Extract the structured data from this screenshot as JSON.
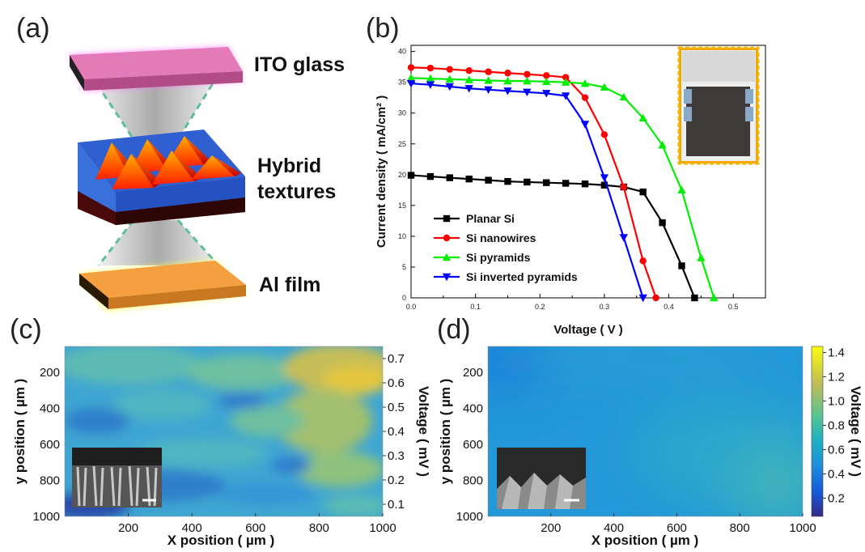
{
  "panels": {
    "a": {
      "label": "(a)",
      "layers": [
        "ITO glass",
        "Hybrid textures",
        "Al film"
      ],
      "layer_label_hybrid_line1": "Hybrid",
      "layer_label_hybrid_line2": "textures",
      "colors": {
        "ito": "#e070b0",
        "ito_glow": "#ff80ff",
        "water": "#3a6fd8",
        "pyramid_hot": "#ff3300",
        "pyramid_warm": "#ffb000",
        "substrate": "#4a0a0a",
        "al": "#f5a040",
        "al_glow": "#ffff60",
        "cone": "#9a9a9a",
        "cone_edge": "#5cbf9a"
      }
    },
    "b": {
      "label": "(b)"
    },
    "c": {
      "label": "(c)"
    },
    "d": {
      "label": "(d)"
    }
  },
  "chart_data": [
    {
      "type": "line",
      "panel": "b",
      "xlabel": "Voltage ( V )",
      "ylabel": "Current density ( mA/cm² )",
      "xlim": [
        0.0,
        0.55
      ],
      "ylim": [
        0,
        41
      ],
      "xticks": [
        "0.0",
        "0.1",
        "0.2",
        "0.3",
        "0.4",
        "0.5"
      ],
      "xtick_values": [
        0.0,
        0.1,
        0.2,
        0.3,
        0.4,
        0.5
      ],
      "yticks": [
        "0",
        "5",
        "10",
        "15",
        "20",
        "25",
        "30",
        "35",
        "40"
      ],
      "ytick_values": [
        0,
        5,
        10,
        15,
        20,
        25,
        30,
        35,
        40
      ],
      "minor_xticks": [
        0.05,
        0.15,
        0.25,
        0.35,
        0.45
      ],
      "legend_position": "bottom-left",
      "inset": "photo of device",
      "series": [
        {
          "name": "Planar Si",
          "color": "#000000",
          "marker": "square",
          "x": [
            0.0,
            0.03,
            0.06,
            0.09,
            0.12,
            0.15,
            0.18,
            0.21,
            0.24,
            0.27,
            0.3,
            0.33,
            0.36,
            0.39,
            0.42,
            0.44
          ],
          "y": [
            19.9,
            19.7,
            19.5,
            19.3,
            19.1,
            18.9,
            18.8,
            18.7,
            18.6,
            18.5,
            18.3,
            18.0,
            17.2,
            12.2,
            5.2,
            0
          ]
        },
        {
          "name": "Si nanowires",
          "color": "#ff0000",
          "marker": "circle",
          "x": [
            0.0,
            0.03,
            0.06,
            0.09,
            0.12,
            0.15,
            0.18,
            0.21,
            0.24,
            0.27,
            0.3,
            0.33,
            0.36,
            0.38
          ],
          "y": [
            37.4,
            37.3,
            37.1,
            36.9,
            36.7,
            36.5,
            36.3,
            36.1,
            35.8,
            32.5,
            26.5,
            18.0,
            6.0,
            0
          ]
        },
        {
          "name": "Si pyramids",
          "color": "#00ee00",
          "marker": "triangle-up",
          "x": [
            0.0,
            0.03,
            0.06,
            0.09,
            0.12,
            0.15,
            0.18,
            0.21,
            0.24,
            0.27,
            0.3,
            0.33,
            0.36,
            0.39,
            0.42,
            0.45,
            0.47
          ],
          "y": [
            35.7,
            35.6,
            35.5,
            35.4,
            35.3,
            35.2,
            35.2,
            35.1,
            35.0,
            34.8,
            34.2,
            32.6,
            29.2,
            24.8,
            17.5,
            6.5,
            0
          ]
        },
        {
          "name": "Si inverted pyramids",
          "color": "#0000ff",
          "marker": "triangle-down",
          "x": [
            0.0,
            0.03,
            0.06,
            0.09,
            0.12,
            0.15,
            0.18,
            0.21,
            0.24,
            0.27,
            0.3,
            0.33,
            0.36
          ],
          "y": [
            34.8,
            34.6,
            34.3,
            34.0,
            33.8,
            33.6,
            33.4,
            33.2,
            32.8,
            28.2,
            19.5,
            9.8,
            0
          ]
        }
      ]
    },
    {
      "type": "heatmap",
      "panel": "c",
      "xlabel": "X position ( µm )",
      "ylabel": "y position ( µm )",
      "colorbar_label": "Voltage ( mV )",
      "xticks": [
        "200",
        "400",
        "600",
        "800",
        "1000"
      ],
      "xtick_values": [
        200,
        400,
        600,
        800,
        1000
      ],
      "yticks": [
        "200",
        "400",
        "600",
        "800",
        "1000"
      ],
      "ytick_values": [
        200,
        400,
        600,
        800,
        1000
      ],
      "colorbar_ticks": [
        "0.1",
        "0.2",
        "0.3",
        "0.4",
        "0.5",
        "0.6",
        "0.7"
      ],
      "colorbar_values": [
        0.1,
        0.2,
        0.3,
        0.4,
        0.5,
        0.6,
        0.7
      ],
      "range": [
        0.05,
        0.75
      ],
      "colorbar_position": "right",
      "inset": "SEM image of nanowires"
    },
    {
      "type": "heatmap",
      "panel": "d",
      "xlabel": "X position ( µm )",
      "ylabel": "y position ( µm )",
      "colorbar_label": "Voltage ( mV )",
      "xticks": [
        "200",
        "400",
        "600",
        "800",
        "1000"
      ],
      "xtick_values": [
        200,
        400,
        600,
        800,
        1000
      ],
      "yticks": [
        "200",
        "400",
        "600",
        "800",
        "1000"
      ],
      "ytick_values": [
        200,
        400,
        600,
        800,
        1000
      ],
      "colorbar_ticks": [
        "0.2",
        "0.4",
        "0.6",
        "0.8",
        "1.0",
        "1.2",
        "1.4"
      ],
      "colorbar_values": [
        0.2,
        0.4,
        0.6,
        0.8,
        1.0,
        1.2,
        1.4
      ],
      "range": [
        0.05,
        1.45
      ],
      "colorbar_position": "right",
      "inset": "SEM image of pyramids"
    }
  ]
}
